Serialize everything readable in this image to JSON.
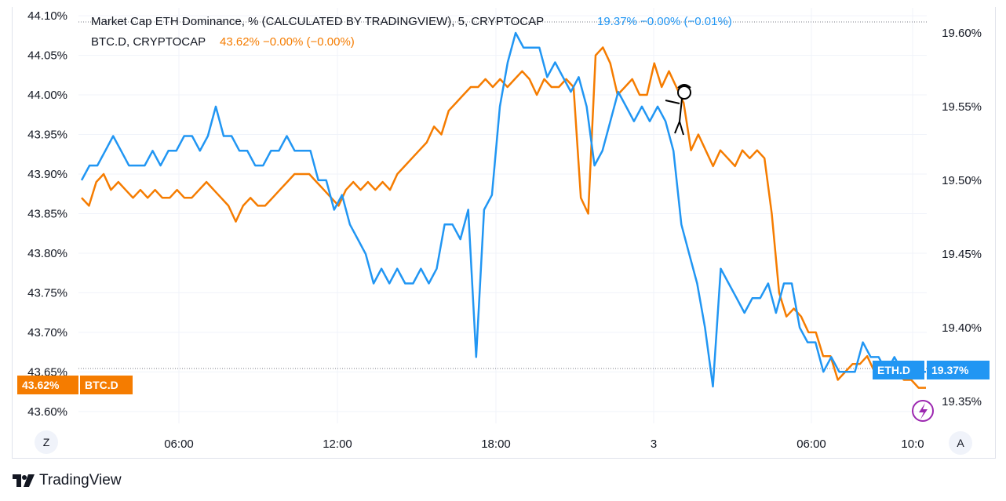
{
  "legend": {
    "eth_name": "Market Cap ETH Dominance, % (CALCULATED BY TRADINGVIEW), 5, CRYPTOCAP",
    "eth_values": "19.37%  −0.00% (−0.01%)",
    "btc_name": "BTC.D, CRYPTOCAP",
    "btc_values": "43.62%  −0.00% (−0.00%)"
  },
  "badges": {
    "btc_price": "43.62%",
    "btc_symbol": "BTC.D",
    "eth_symbol": "ETH.D",
    "eth_price": "19.37%"
  },
  "buttons": {
    "left_scale": "Z",
    "auto_scale": "A"
  },
  "brand": "TradingView",
  "colors": {
    "eth": "#2196f3",
    "btc": "#f57c00",
    "grid": "#f0f3fa",
    "text": "#131722",
    "accent": "#9c27b0"
  },
  "chart_data": {
    "type": "line",
    "x_ticks": [
      "06:00",
      "12:00",
      "18:00",
      "3",
      "06:00",
      "10:0"
    ],
    "left_axis": {
      "ticks": [
        "44.10%",
        "44.05%",
        "44.00%",
        "43.95%",
        "43.90%",
        "43.85%",
        "43.80%",
        "43.75%",
        "43.70%",
        "43.65%",
        "43.60%"
      ],
      "ylim": [
        43.585,
        44.11
      ]
    },
    "right_axis": {
      "ticks": [
        "19.60%",
        "19.55%",
        "19.50%",
        "19.45%",
        "19.40%",
        "19.35%"
      ],
      "ylim": [
        19.335,
        19.617
      ]
    },
    "series": [
      {
        "name": "BTC.D",
        "axis": "left",
        "values": [
          43.87,
          43.86,
          43.89,
          43.9,
          43.88,
          43.89,
          43.88,
          43.87,
          43.88,
          43.87,
          43.88,
          43.87,
          43.87,
          43.88,
          43.87,
          43.87,
          43.88,
          43.89,
          43.88,
          43.87,
          43.86,
          43.84,
          43.86,
          43.87,
          43.86,
          43.86,
          43.87,
          43.88,
          43.89,
          43.9,
          43.9,
          43.9,
          43.89,
          43.88,
          43.87,
          43.86,
          43.88,
          43.89,
          43.88,
          43.89,
          43.88,
          43.89,
          43.88,
          43.9,
          43.91,
          43.92,
          43.93,
          43.94,
          43.96,
          43.95,
          43.98,
          43.99,
          44.0,
          44.01,
          44.01,
          44.02,
          44.01,
          44.02,
          44.01,
          44.02,
          44.03,
          44.02,
          44.0,
          44.02,
          44.01,
          44.01,
          44.02,
          44.01,
          43.87,
          43.85,
          44.05,
          44.06,
          44.04,
          44.0,
          44.01,
          44.02,
          44.0,
          44.0,
          44.04,
          44.01,
          44.03,
          44.01,
          43.99,
          43.93,
          43.95,
          43.93,
          43.91,
          43.93,
          43.92,
          43.91,
          43.93,
          43.92,
          43.93,
          43.92,
          43.85,
          43.75,
          43.72,
          43.73,
          43.72,
          43.7,
          43.7,
          43.67,
          43.67,
          43.64,
          43.65,
          43.66,
          43.66,
          43.67,
          43.65,
          43.66,
          43.66,
          43.65,
          43.64,
          43.64,
          43.63,
          43.63
        ],
        "approx_min": 43.61,
        "approx_max": 44.06
      },
      {
        "name": "ETH.D",
        "axis": "right",
        "values": [
          19.5,
          19.51,
          19.51,
          19.52,
          19.53,
          19.52,
          19.51,
          19.51,
          19.51,
          19.52,
          19.51,
          19.52,
          19.52,
          19.53,
          19.53,
          19.52,
          19.53,
          19.55,
          19.53,
          19.53,
          19.52,
          19.52,
          19.51,
          19.51,
          19.52,
          19.52,
          19.53,
          19.52,
          19.52,
          19.52,
          19.5,
          19.5,
          19.48,
          19.49,
          19.47,
          19.46,
          19.45,
          19.43,
          19.44,
          19.43,
          19.44,
          19.43,
          19.43,
          19.44,
          19.43,
          19.44,
          19.47,
          19.47,
          19.46,
          19.48,
          19.38,
          19.48,
          19.49,
          19.55,
          19.58,
          19.6,
          19.59,
          19.59,
          19.59,
          19.57,
          19.58,
          19.57,
          19.56,
          19.57,
          19.55,
          19.51,
          19.52,
          19.54,
          19.56,
          19.55,
          19.54,
          19.55,
          19.54,
          19.55,
          19.54,
          19.52,
          19.47,
          19.45,
          19.43,
          19.4,
          19.36,
          19.44,
          19.43,
          19.42,
          19.41,
          19.42,
          19.42,
          19.43,
          19.41,
          19.43,
          19.43,
          19.4,
          19.39,
          19.39,
          19.37,
          19.38,
          19.37,
          19.37,
          19.37,
          19.39,
          19.38,
          19.38,
          19.37,
          19.38,
          19.37,
          19.37,
          19.37,
          19.37
        ],
        "approx_min": 19.36,
        "approx_max": 19.6
      }
    ]
  }
}
